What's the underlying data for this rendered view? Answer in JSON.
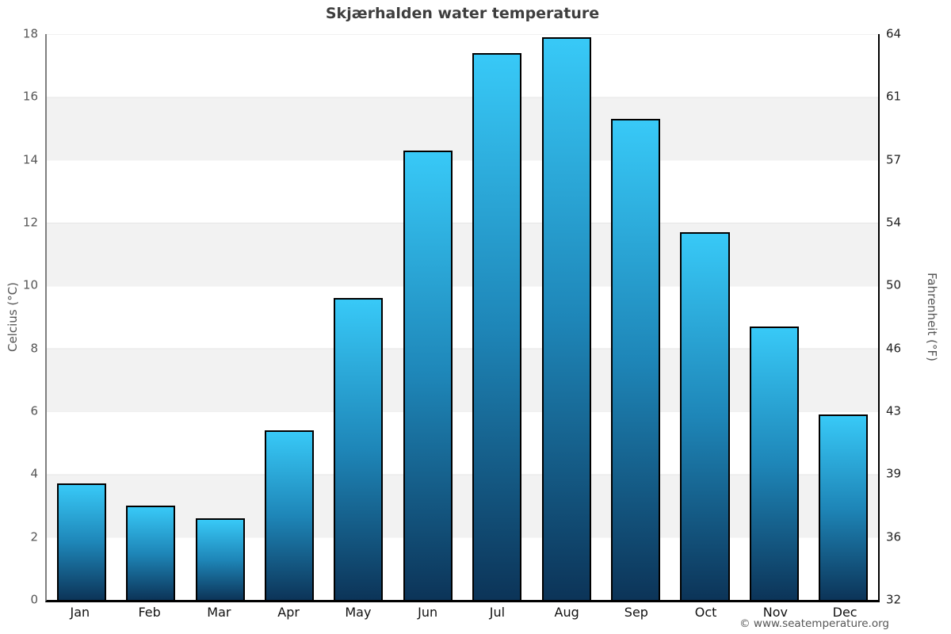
{
  "chart_data": {
    "type": "bar",
    "title": "Skjærhalden water temperature",
    "categories": [
      "Jan",
      "Feb",
      "Mar",
      "Apr",
      "May",
      "Jun",
      "Jul",
      "Aug",
      "Sep",
      "Oct",
      "Nov",
      "Dec"
    ],
    "values": [
      3.7,
      3.0,
      2.6,
      5.4,
      9.6,
      14.3,
      17.4,
      17.9,
      15.3,
      11.7,
      8.7,
      5.9
    ],
    "ylabel_left": "Celcius (°C)",
    "ylabel_right": "Fahrenheit (°F)",
    "ylim": [
      0,
      18
    ],
    "celsius_ticks": [
      0,
      2,
      4,
      6,
      8,
      10,
      12,
      14,
      16,
      18
    ],
    "fahrenheit_ticks": [
      32,
      36,
      39,
      43,
      46,
      50,
      54,
      57,
      61,
      64
    ],
    "legend": null,
    "grid": "alternating horizontal bands, 2°C per band",
    "band_color": "#f2f2f2",
    "bar_border_color": "#000000",
    "bar_colors": {
      "top": "#38c9f7",
      "mid": "#1e86b8",
      "bottom": "#0c3458"
    }
  },
  "footer": {
    "copyright": "© www.seatemperature.org"
  }
}
